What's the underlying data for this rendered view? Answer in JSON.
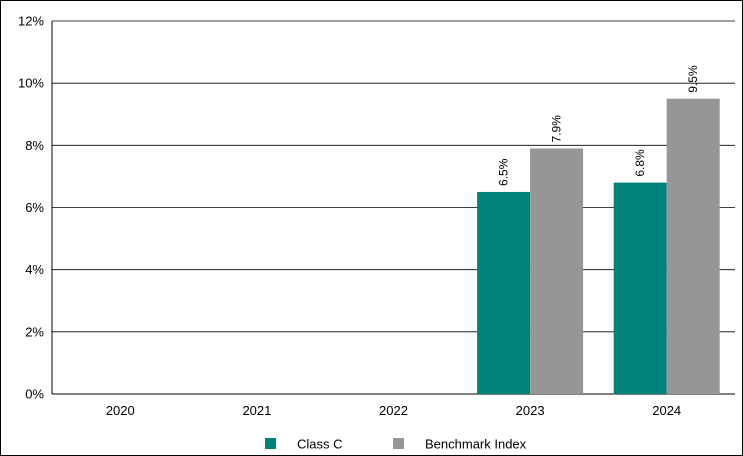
{
  "chart_data": {
    "type": "bar",
    "categories": [
      "2020",
      "2021",
      "2022",
      "2023",
      "2024"
    ],
    "series": [
      {
        "name": "Class C",
        "color": "#00827a",
        "values": [
          null,
          null,
          null,
          6.5,
          6.8
        ],
        "labels": [
          "",
          "",
          "",
          "6.5%",
          "6.8%"
        ]
      },
      {
        "name": "Benchmark Index",
        "color": "#969696",
        "values": [
          null,
          null,
          null,
          7.9,
          9.5
        ],
        "labels": [
          "",
          "",
          "",
          "7.9%",
          "9.5%"
        ]
      }
    ],
    "ylim": [
      0,
      12
    ],
    "yticks": [
      0,
      2,
      4,
      6,
      8,
      10,
      12
    ],
    "ytick_labels": [
      "0%",
      "2%",
      "4%",
      "6%",
      "8%",
      "10%",
      "12%"
    ],
    "grid": true,
    "legend_position": "bottom-center",
    "title": "",
    "xlabel": "",
    "ylabel": ""
  }
}
